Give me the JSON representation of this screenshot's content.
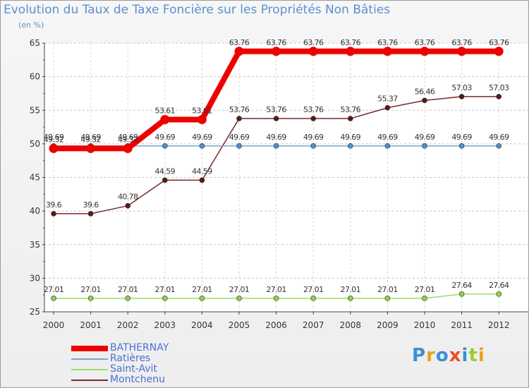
{
  "title": "Evolution du Taux de Taxe Foncière sur les Propriétés Non Bâties",
  "unit_label": "(en %)",
  "logo_text": "Proxiti",
  "chart_data": {
    "type": "line",
    "title": "Evolution du Taux de Taxe Foncière sur les Propriétés Non Bâties",
    "ylabel": "(en %)",
    "xlabel": "",
    "ylim": [
      25,
      65
    ],
    "y_ticks": [
      25,
      30,
      35,
      40,
      45,
      50,
      55,
      60,
      65
    ],
    "categories": [
      "2000",
      "2001",
      "2002",
      "2003",
      "2004",
      "2005",
      "2006",
      "2007",
      "2008",
      "2009",
      "2010",
      "2011",
      "2012"
    ],
    "series": [
      {
        "name": "BATHERNAY",
        "color": "#ee0000",
        "values": [
          49.32,
          49.32,
          49.32,
          53.61,
          53.61,
          63.76,
          63.76,
          63.76,
          63.76,
          63.76,
          63.76,
          63.76,
          63.76
        ],
        "labels": [
          "49.32",
          "49.32",
          "49.32",
          "53.61",
          "53.61",
          "63.76",
          "63.76",
          "63.76",
          "63.76",
          "63.76",
          "63.76",
          "63.76",
          "63.76"
        ]
      },
      {
        "name": "Ratières",
        "color": "#7aa6cc",
        "values": [
          49.69,
          49.69,
          49.69,
          49.69,
          49.69,
          49.69,
          49.69,
          49.69,
          49.69,
          49.69,
          49.69,
          49.69,
          49.69
        ],
        "labels": [
          "49.69",
          "49.69",
          "49.69",
          "49.69",
          "49.69",
          "49.69",
          "49.69",
          "49.69",
          "49.69",
          "49.69",
          "49.69",
          "49.69",
          "49.69"
        ]
      },
      {
        "name": "Saint-Avit",
        "color": "#9edb6a",
        "values": [
          27.01,
          27.01,
          27.01,
          27.01,
          27.01,
          27.01,
          27.01,
          27.01,
          27.01,
          27.01,
          27.01,
          27.64,
          27.64
        ],
        "labels": [
          "27.01",
          "27.01",
          "27.01",
          "27.01",
          "27.01",
          "27.01",
          "27.01",
          "27.01",
          "27.01",
          "27.01",
          "27.01",
          "27.64",
          "27.64"
        ]
      },
      {
        "name": "Montchenu",
        "color": "#7a2a2a",
        "values": [
          39.6,
          39.6,
          40.78,
          44.59,
          44.59,
          53.76,
          53.76,
          53.76,
          53.76,
          55.37,
          56.46,
          57.03,
          57.03
        ],
        "labels": [
          "39.6",
          "39.6",
          "40.78",
          "44.59",
          "44.59",
          "53.76",
          "53.76",
          "53.76",
          "53.76",
          "55.37",
          "56.46",
          "57.03",
          "57.03"
        ]
      }
    ],
    "legend_position": "bottom-left"
  }
}
